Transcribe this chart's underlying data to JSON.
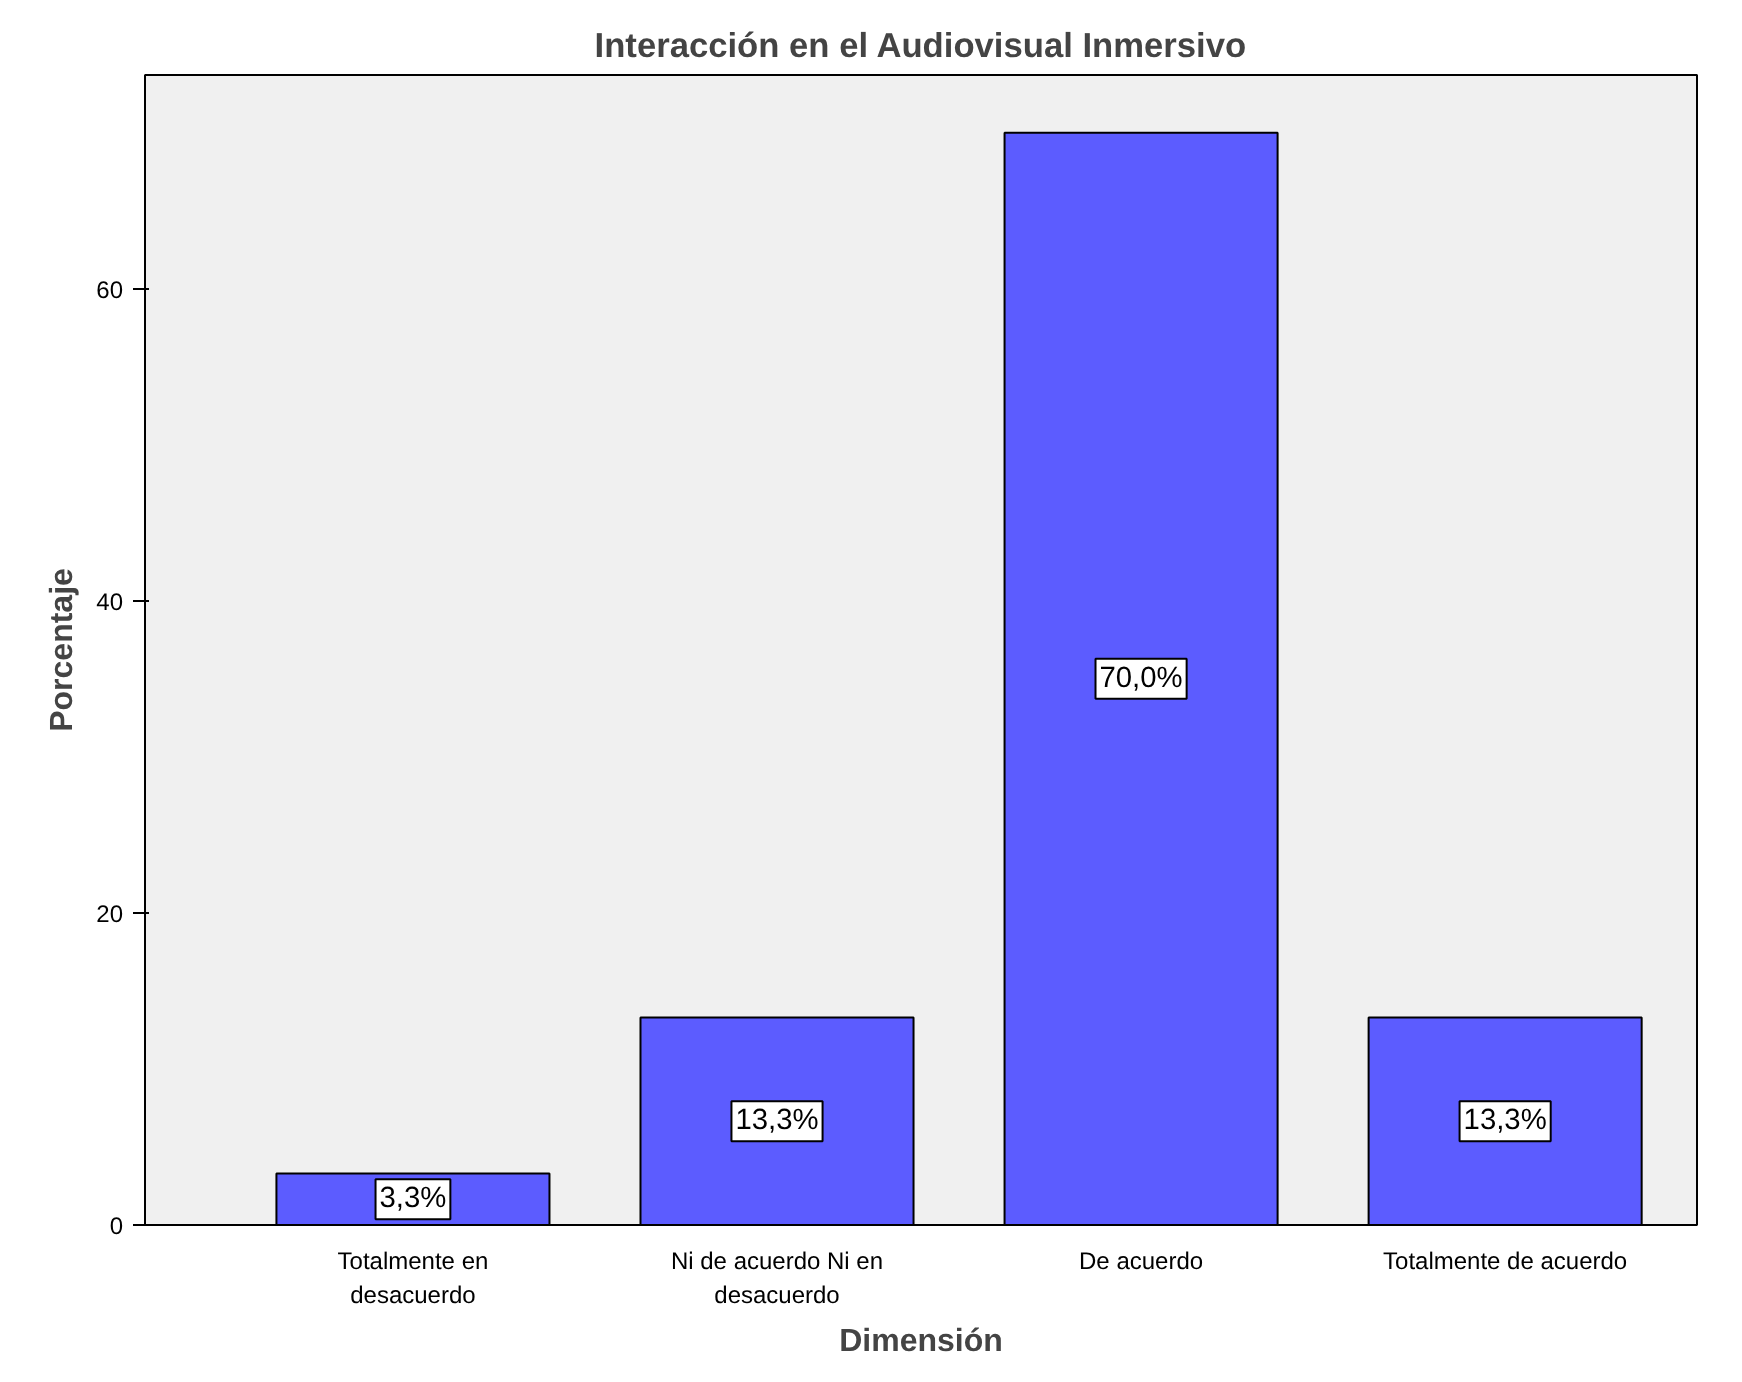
{
  "chart_data": {
    "type": "bar",
    "title": "Interacción en el Audiovisual Inmersivo",
    "xlabel": "Dimensión",
    "ylabel": "Porcentaje",
    "categories": [
      "Totalmente en\ndesacuerdo",
      "Ni de acuerdo Ni en\ndesacuerdo",
      "De acuerdo",
      "Totalmente de acuerdo"
    ],
    "values": [
      3.3,
      13.3,
      70.0,
      13.3
    ],
    "value_labels": [
      "3,3%",
      "13,3%",
      "70,0%",
      "13,3%"
    ],
    "color": "#5c5cff",
    "ylim": [
      0,
      73.7
    ],
    "yticks": [
      0,
      20,
      40,
      60
    ],
    "grid": false
  }
}
